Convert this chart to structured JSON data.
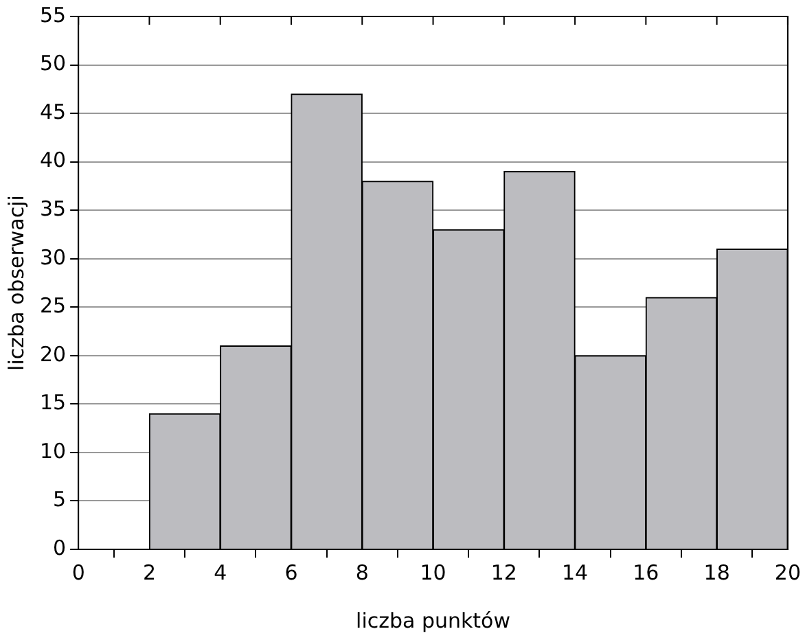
{
  "chart_data": {
    "type": "histogram",
    "xlabel": "liczba punktów",
    "ylabel": "liczba obserwacji",
    "bins": [
      2,
      4,
      6,
      8,
      10,
      12,
      14,
      16,
      18,
      20
    ],
    "values": [
      14,
      21,
      47,
      38,
      33,
      39,
      20,
      26,
      31
    ],
    "color": "#bcbcc0",
    "xlim": [
      0,
      20
    ],
    "xticks": [
      0,
      2,
      4,
      6,
      8,
      10,
      12,
      14,
      16,
      18,
      20
    ],
    "ylim": [
      0,
      55
    ],
    "yticks": [
      0,
      5,
      10,
      15,
      20,
      25,
      30,
      35,
      40,
      45,
      50,
      55
    ],
    "grid": "y",
    "legend": false
  }
}
